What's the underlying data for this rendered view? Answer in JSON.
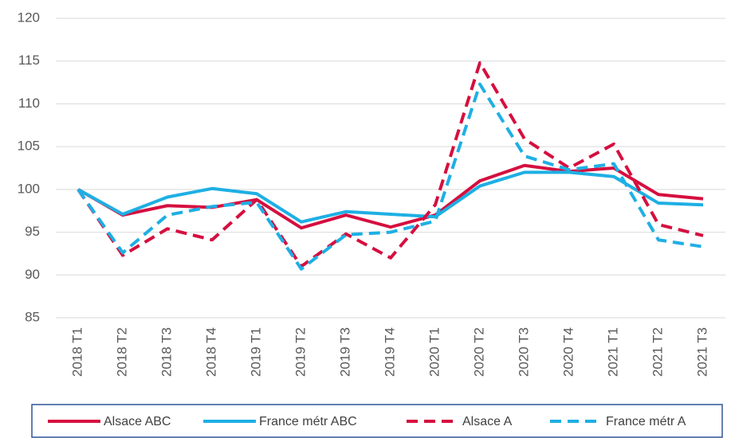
{
  "chart_data": {
    "type": "line",
    "categories": [
      "2018 T1",
      "2018 T2",
      "2018 T3",
      "2018 T4",
      "2019 T1",
      "2019 T2",
      "2019 T3",
      "2019 T4",
      "2020 T1",
      "2020 T2",
      "2020 T3",
      "2020 T4",
      "2021 T1",
      "2021 T2",
      "2021 T3"
    ],
    "series": [
      {
        "name": "Alsace ABC",
        "color": "#d50f3f",
        "dashed": false,
        "values": [
          100,
          97,
          98.1,
          97.9,
          98.8,
          95.5,
          97,
          95.6,
          97,
          101,
          102.8,
          102.1,
          102.5,
          99.4,
          98.9
        ]
      },
      {
        "name": "France métr ABC",
        "color": "#1eafe4",
        "dashed": false,
        "values": [
          100,
          97.1,
          99.1,
          100.1,
          99.5,
          96.2,
          97.4,
          97.1,
          96.8,
          100.4,
          102,
          102,
          101.5,
          98.4,
          98.2
        ]
      },
      {
        "name": "Alsace A",
        "color": "#d50f3f",
        "dashed": true,
        "values": [
          100,
          92.3,
          95.4,
          94.1,
          98.8,
          91,
          94.8,
          92,
          98.2,
          114.8,
          105.9,
          102.5,
          105.3,
          95.9,
          94.6
        ]
      },
      {
        "name": "France métr A",
        "color": "#1eafe4",
        "dashed": true,
        "values": [
          100,
          92.6,
          97,
          98,
          98.5,
          90.7,
          94.7,
          95,
          96.3,
          112.3,
          103.9,
          102.3,
          103,
          94.1,
          93.3
        ]
      }
    ],
    "ylim": [
      85,
      120
    ],
    "yticks": [
      85,
      90,
      95,
      100,
      105,
      110,
      115,
      120
    ],
    "grid": true
  }
}
